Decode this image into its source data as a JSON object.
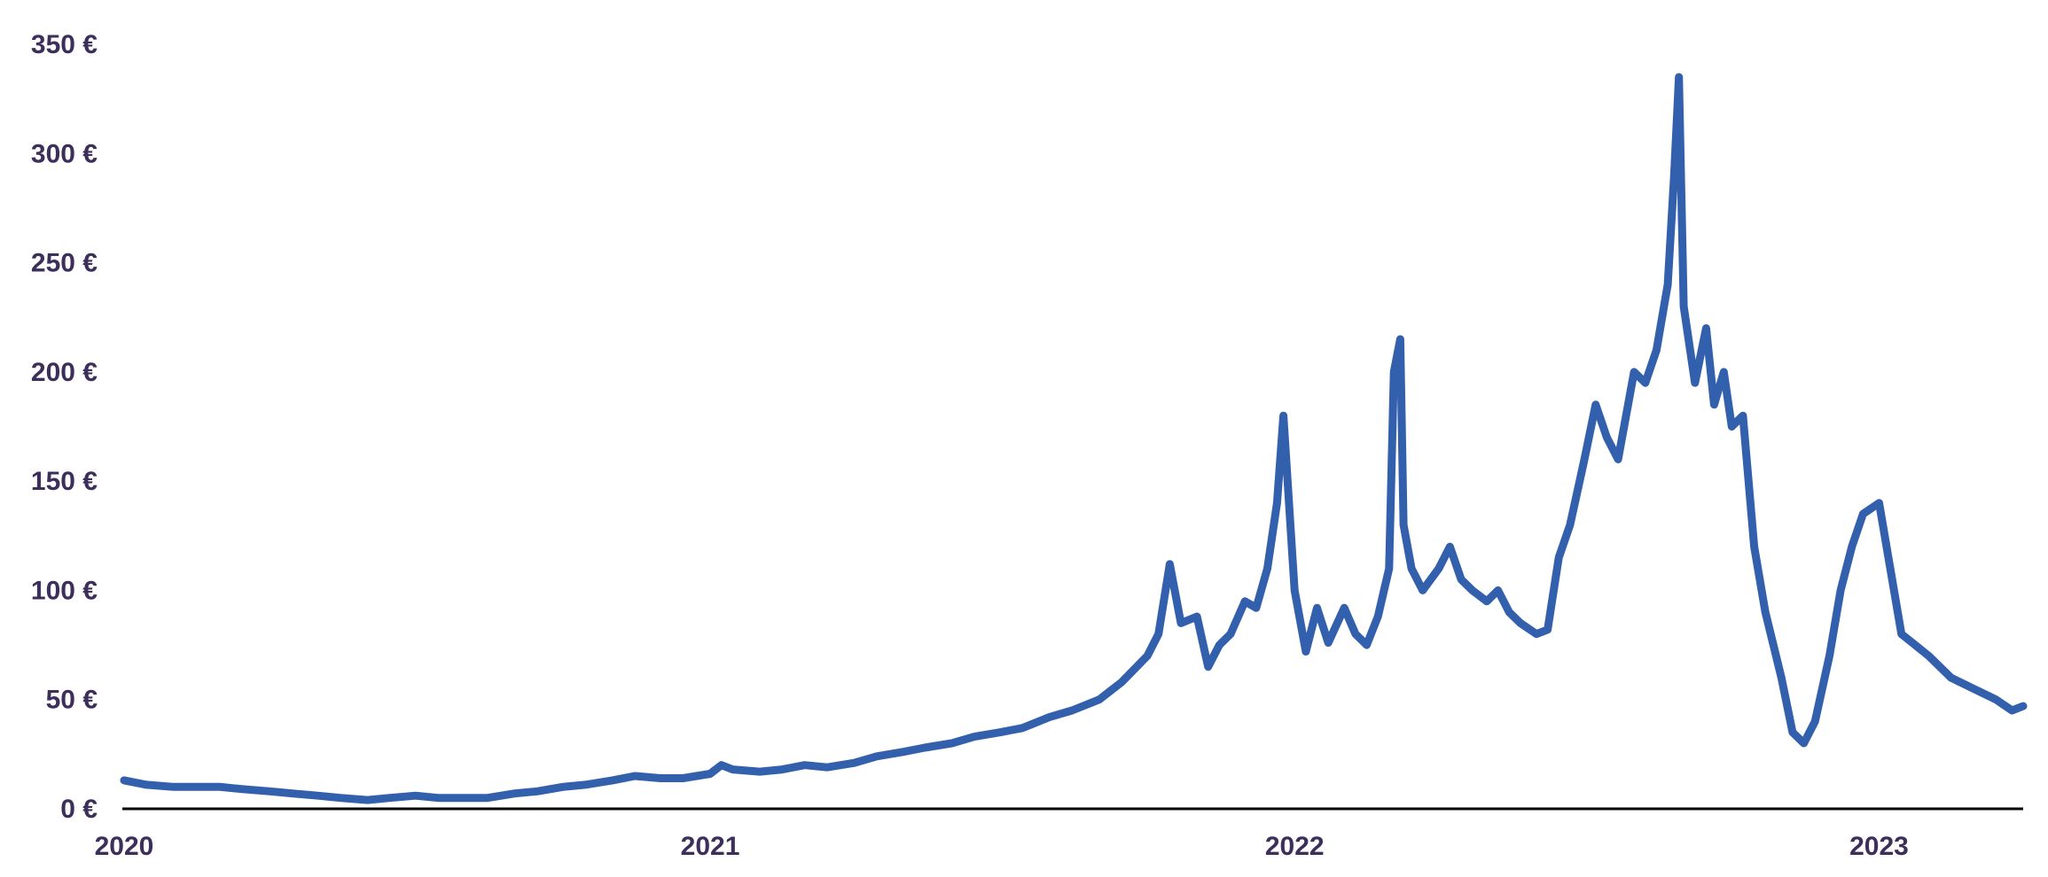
{
  "chart_data": {
    "type": "line",
    "title": "",
    "xlabel": "",
    "ylabel": "",
    "x_range": [
      "2020-01-01",
      "2023-04-01"
    ],
    "ylim": [
      0,
      350
    ],
    "y_ticks": [
      0,
      50,
      100,
      150,
      200,
      250,
      300,
      350
    ],
    "y_tick_labels": [
      "0 €",
      "50 €",
      "100 €",
      "150 €",
      "200 €",
      "250 €",
      "300 €",
      "350 €"
    ],
    "x_ticks": [
      "2020-01-01",
      "2021-01-01",
      "2022-01-01",
      "2023-01-01"
    ],
    "x_tick_labels": [
      "2020",
      "2021",
      "2022",
      "2023"
    ],
    "grid": false,
    "legend": "none",
    "colors": {
      "line": "#3360ad",
      "axis": "#000000",
      "text": "#3d2f5b"
    },
    "series": [
      {
        "x": [
          "2020-01-01",
          "2020-01-15",
          "2020-02-01",
          "2020-02-15",
          "2020-03-01",
          "2020-03-15",
          "2020-04-01",
          "2020-04-15",
          "2020-05-01",
          "2020-05-15",
          "2020-06-01",
          "2020-06-15",
          "2020-07-01",
          "2020-07-15",
          "2020-08-01",
          "2020-08-15",
          "2020-09-01",
          "2020-09-15",
          "2020-10-01",
          "2020-10-15",
          "2020-11-01",
          "2020-11-15",
          "2020-12-01",
          "2020-12-15",
          "2021-01-01",
          "2021-01-08",
          "2021-01-15",
          "2021-02-01",
          "2021-02-15",
          "2021-03-01",
          "2021-03-15",
          "2021-04-01",
          "2021-04-15",
          "2021-05-01",
          "2021-05-15",
          "2021-06-01",
          "2021-06-15",
          "2021-07-01",
          "2021-07-15",
          "2021-08-01",
          "2021-08-15",
          "2021-09-01",
          "2021-09-15",
          "2021-10-01",
          "2021-10-08",
          "2021-10-15",
          "2021-10-22",
          "2021-11-01",
          "2021-11-08",
          "2021-11-15",
          "2021-11-22",
          "2021-12-01",
          "2021-12-08",
          "2021-12-15",
          "2021-12-21",
          "2021-12-25",
          "2022-01-01",
          "2022-01-08",
          "2022-01-15",
          "2022-01-22",
          "2022-02-01",
          "2022-02-08",
          "2022-02-15",
          "2022-02-22",
          "2022-03-01",
          "2022-03-04",
          "2022-03-08",
          "2022-03-10",
          "2022-03-15",
          "2022-03-22",
          "2022-04-01",
          "2022-04-08",
          "2022-04-15",
          "2022-04-22",
          "2022-05-01",
          "2022-05-08",
          "2022-05-15",
          "2022-05-22",
          "2022-06-01",
          "2022-06-08",
          "2022-06-15",
          "2022-06-22",
          "2022-07-01",
          "2022-07-08",
          "2022-07-15",
          "2022-07-22",
          "2022-08-01",
          "2022-08-08",
          "2022-08-15",
          "2022-08-22",
          "2022-08-26",
          "2022-08-29",
          "2022-09-01",
          "2022-09-08",
          "2022-09-15",
          "2022-09-20",
          "2022-09-26",
          "2022-10-01",
          "2022-10-08",
          "2022-10-15",
          "2022-10-22",
          "2022-11-01",
          "2022-11-08",
          "2022-11-15",
          "2022-11-22",
          "2022-12-01",
          "2022-12-08",
          "2022-12-15",
          "2022-12-22",
          "2023-01-01",
          "2023-01-15",
          "2023-02-01",
          "2023-02-15",
          "2023-03-01",
          "2023-03-15",
          "2023-03-25",
          "2023-04-01"
        ],
        "y": [
          13,
          11,
          10,
          10,
          10,
          9,
          8,
          7,
          6,
          5,
          4,
          5,
          6,
          5,
          5,
          5,
          7,
          8,
          10,
          11,
          13,
          15,
          14,
          14,
          16,
          20,
          18,
          17,
          18,
          20,
          19,
          21,
          24,
          26,
          28,
          30,
          33,
          35,
          37,
          42,
          45,
          50,
          58,
          70,
          80,
          112,
          85,
          88,
          65,
          75,
          80,
          95,
          92,
          110,
          140,
          180,
          100,
          72,
          92,
          76,
          92,
          80,
          75,
          88,
          110,
          200,
          215,
          130,
          110,
          100,
          110,
          120,
          105,
          100,
          95,
          100,
          90,
          85,
          80,
          82,
          115,
          130,
          160,
          185,
          170,
          160,
          200,
          195,
          210,
          240,
          290,
          335,
          230,
          195,
          220,
          185,
          200,
          175,
          180,
          120,
          90,
          60,
          35,
          30,
          40,
          70,
          100,
          120,
          135,
          140,
          80,
          70,
          60,
          55,
          50,
          45,
          47
        ]
      }
    ]
  }
}
